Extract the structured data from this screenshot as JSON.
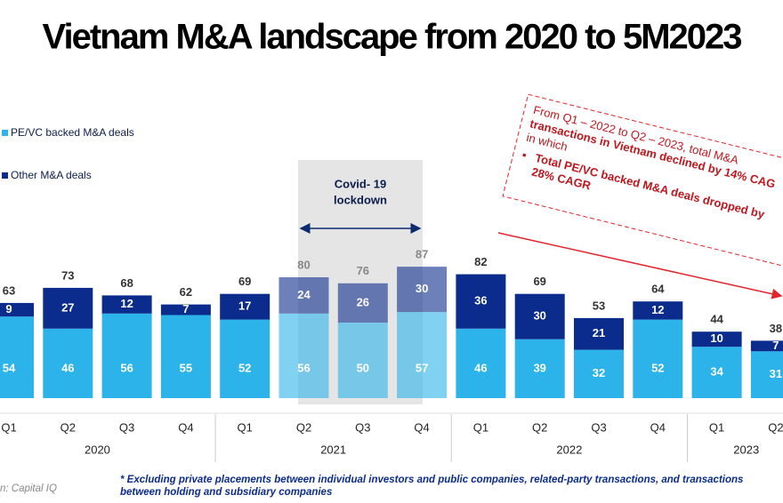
{
  "chart_data": {
    "type": "stacked-bar",
    "title": "Vietnam M&A landscape from 2020 to 5M2023",
    "categories": [
      "Q1",
      "Q2",
      "Q3",
      "Q4",
      "Q1",
      "Q2",
      "Q3",
      "Q4",
      "Q1",
      "Q2",
      "Q3",
      "Q4",
      "Q1",
      "Q2"
    ],
    "groups": [
      {
        "name": "2020",
        "size": 4
      },
      {
        "name": "2021",
        "size": 4
      },
      {
        "name": "2022",
        "size": 4
      },
      {
        "name": "2023",
        "size": 2
      }
    ],
    "series": [
      {
        "name": "PE/VC backed M&A deals",
        "color": "#2bb3ea",
        "values": [
          54,
          46,
          56,
          55,
          52,
          56,
          50,
          57,
          46,
          39,
          32,
          52,
          34,
          31
        ]
      },
      {
        "name": "Other M&A deals",
        "color": "#0b2c8c",
        "values": [
          9,
          27,
          12,
          7,
          17,
          24,
          26,
          30,
          36,
          30,
          21,
          12,
          10,
          7
        ]
      }
    ],
    "totals": [
      63,
      73,
      68,
      62,
      69,
      80,
      76,
      87,
      82,
      69,
      53,
      64,
      44,
      38
    ],
    "annotations": {
      "covid": [
        "Covid- 19",
        "lockdown"
      ],
      "trend": [
        "From Q1 – 2022 to Q2 – 2023, total M&A",
        "transactions in Vietnam declined by 14% CAG",
        "in which",
        "Total PE/VC backed M&A deals dropped by",
        "28% CAGR"
      ]
    },
    "footnote": [
      "* Excluding private placements between individual investors and public companies, related-party transactions, and transactions",
      "between holding and subsidiary companies"
    ],
    "source": "n: Capital IQ"
  }
}
